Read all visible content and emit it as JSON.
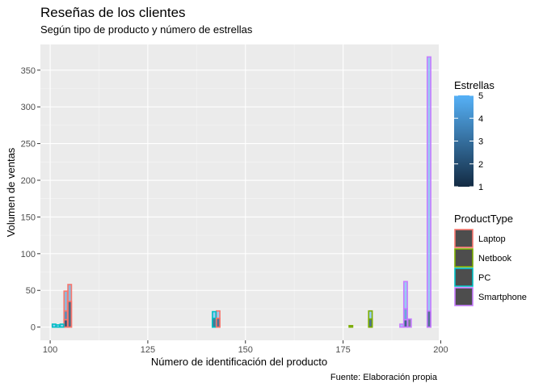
{
  "chart_data": {
    "type": "bar",
    "title": "Reseñas de los clientes",
    "subtitle": "Según tipo de producto y número de estrellas",
    "xlabel": "Número de identificación del producto",
    "ylabel": "Volumen de ventas",
    "caption": "Fuente: Elaboración propia",
    "xlim": [
      97.5,
      199.5
    ],
    "ylim": [
      -18,
      385
    ],
    "x_ticks": [
      100,
      125,
      150,
      175,
      200
    ],
    "y_ticks": [
      0,
      50,
      100,
      150,
      200,
      250,
      300,
      350
    ],
    "grid": true,
    "legend_placement": "right",
    "color_legend": {
      "title": "Estrellas",
      "ticks": [
        1,
        2,
        3,
        4,
        5
      ],
      "low_color": "#132B43",
      "high_color": "#56B1F7"
    },
    "fill_legend": {
      "title": "ProductType",
      "entries": [
        {
          "name": "Laptop",
          "color": "#F8766D"
        },
        {
          "name": "Netbook",
          "color": "#7CAE00"
        },
        {
          "name": "PC",
          "color": "#00BFC4"
        },
        {
          "name": "Smartphone",
          "color": "#C77CFF"
        }
      ]
    },
    "bars": [
      {
        "x": 101,
        "value": 4,
        "type": "PC",
        "stars": 5
      },
      {
        "x": 102,
        "value": 3,
        "type": "PC",
        "stars": 5
      },
      {
        "x": 103,
        "value": 4,
        "type": "PC",
        "stars": 5
      },
      {
        "x": 104,
        "value": 49,
        "type": "Laptop",
        "stars": 4
      },
      {
        "x": 104,
        "value": 22,
        "type": "Laptop",
        "stars": 3
      },
      {
        "x": 104,
        "value": 10,
        "type": "Laptop",
        "stars": 1
      },
      {
        "x": 105,
        "value": 58,
        "type": "Laptop",
        "stars": 4
      },
      {
        "x": 105,
        "value": 35,
        "type": "Laptop",
        "stars": 1
      },
      {
        "x": 142,
        "value": 21,
        "type": "PC",
        "stars": 5
      },
      {
        "x": 142,
        "value": 12,
        "type": "PC",
        "stars": 1
      },
      {
        "x": 143,
        "value": 22,
        "type": "Laptop",
        "stars": 5
      },
      {
        "x": 143,
        "value": 12,
        "type": "Laptop",
        "stars": 1
      },
      {
        "x": 177,
        "value": 2,
        "type": "Netbook",
        "stars": 2
      },
      {
        "x": 182,
        "value": 22,
        "type": "Netbook",
        "stars": 5
      },
      {
        "x": 182,
        "value": 11,
        "type": "Netbook",
        "stars": 1
      },
      {
        "x": 190,
        "value": 4,
        "type": "Smartphone",
        "stars": 5
      },
      {
        "x": 191,
        "value": 62,
        "type": "Smartphone",
        "stars": 5
      },
      {
        "x": 191,
        "value": 25,
        "type": "Smartphone",
        "stars": 4
      },
      {
        "x": 191,
        "value": 10,
        "type": "Smartphone",
        "stars": 1
      },
      {
        "x": 192,
        "value": 11,
        "type": "Smartphone",
        "stars": 1
      },
      {
        "x": 197,
        "value": 368,
        "type": "Smartphone",
        "stars": 5
      },
      {
        "x": 197,
        "value": 22,
        "type": "Smartphone",
        "stars": 1
      }
    ]
  }
}
